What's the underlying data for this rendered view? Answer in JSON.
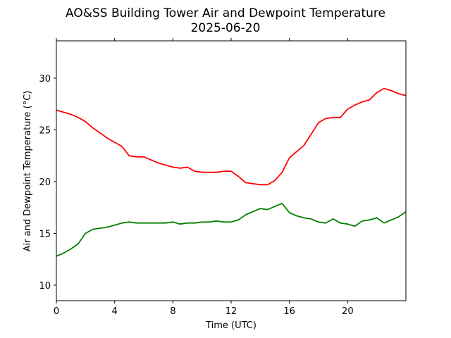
{
  "chart_data": {
    "type": "line",
    "title": "AO&SS Building Tower Air and Dewpoint Temperature",
    "subtitle": "2025-06-20",
    "xlabel": "Time (UTC)",
    "ylabel": "Air and Dewpoint Temperature (°C)",
    "xlim": [
      0,
      24
    ],
    "ylim": [
      8.5,
      33.6
    ],
    "xticks": [
      0,
      4,
      8,
      12,
      16,
      20
    ],
    "xtick_labels": [
      "0",
      "4",
      "8",
      "12",
      "16",
      "20"
    ],
    "yticks": [
      10,
      15,
      20,
      25,
      30
    ],
    "ytick_labels": [
      "10",
      "15",
      "20",
      "25",
      "30"
    ],
    "grid": false,
    "legend": "none",
    "series": [
      {
        "color": "#ff0000",
        "x": [
          0,
          0.5,
          1,
          1.5,
          2,
          2.5,
          3,
          3.5,
          4,
          4.5,
          5,
          5.5,
          6,
          6.5,
          7,
          7.5,
          8,
          8.5,
          9,
          9.5,
          10,
          10.5,
          11,
          11.5,
          12,
          12.5,
          13,
          13.5,
          14,
          14.5,
          15,
          15.5,
          16,
          16.5,
          17,
          17.5,
          18,
          18.5,
          19,
          19.5,
          20,
          20.5,
          21,
          21.5,
          22,
          22.5,
          23,
          23.5,
          24
        ],
        "y": [
          26.9,
          26.7,
          26.5,
          26.2,
          25.8,
          25.2,
          24.7,
          24.2,
          23.8,
          23.4,
          22.5,
          22.4,
          22.4,
          22.1,
          21.8,
          21.6,
          21.4,
          21.3,
          21.4,
          21.0,
          20.9,
          20.9,
          20.9,
          21.0,
          21.0,
          20.5,
          19.9,
          19.8,
          19.7,
          19.7,
          20.1,
          20.9,
          22.3,
          22.9,
          23.5,
          24.6,
          25.7,
          26.1,
          26.2,
          26.2,
          27.0,
          27.4,
          27.7,
          27.9,
          28.6,
          29.0,
          28.8,
          28.5,
          28.3
        ]
      },
      {
        "color": "#008000",
        "x": [
          0,
          0.5,
          1,
          1.5,
          2,
          2.5,
          3,
          3.5,
          4,
          4.5,
          5,
          5.5,
          6,
          6.5,
          7,
          7.5,
          8,
          8.5,
          9,
          9.5,
          10,
          10.5,
          11,
          11.5,
          12,
          12.5,
          13,
          13.5,
          14,
          14.5,
          15,
          15.5,
          16,
          16.5,
          17,
          17.5,
          18,
          18.5,
          19,
          19.5,
          20,
          20.5,
          21,
          21.5,
          22,
          22.5,
          23,
          23.5,
          24
        ],
        "y": [
          12.8,
          13.1,
          13.5,
          14.0,
          15.0,
          15.4,
          15.5,
          15.6,
          15.8,
          16.0,
          16.1,
          16.0,
          16.0,
          16.0,
          16.0,
          16.0,
          16.1,
          15.9,
          16.0,
          16.0,
          16.1,
          16.1,
          16.2,
          16.1,
          16.1,
          16.3,
          16.8,
          17.1,
          17.4,
          17.3,
          17.6,
          17.9,
          17.0,
          16.7,
          16.5,
          16.4,
          16.1,
          16.0,
          16.4,
          16.0,
          15.9,
          15.7,
          16.2,
          16.3,
          16.5,
          16.0,
          16.3,
          16.6,
          17.1
        ]
      }
    ]
  }
}
